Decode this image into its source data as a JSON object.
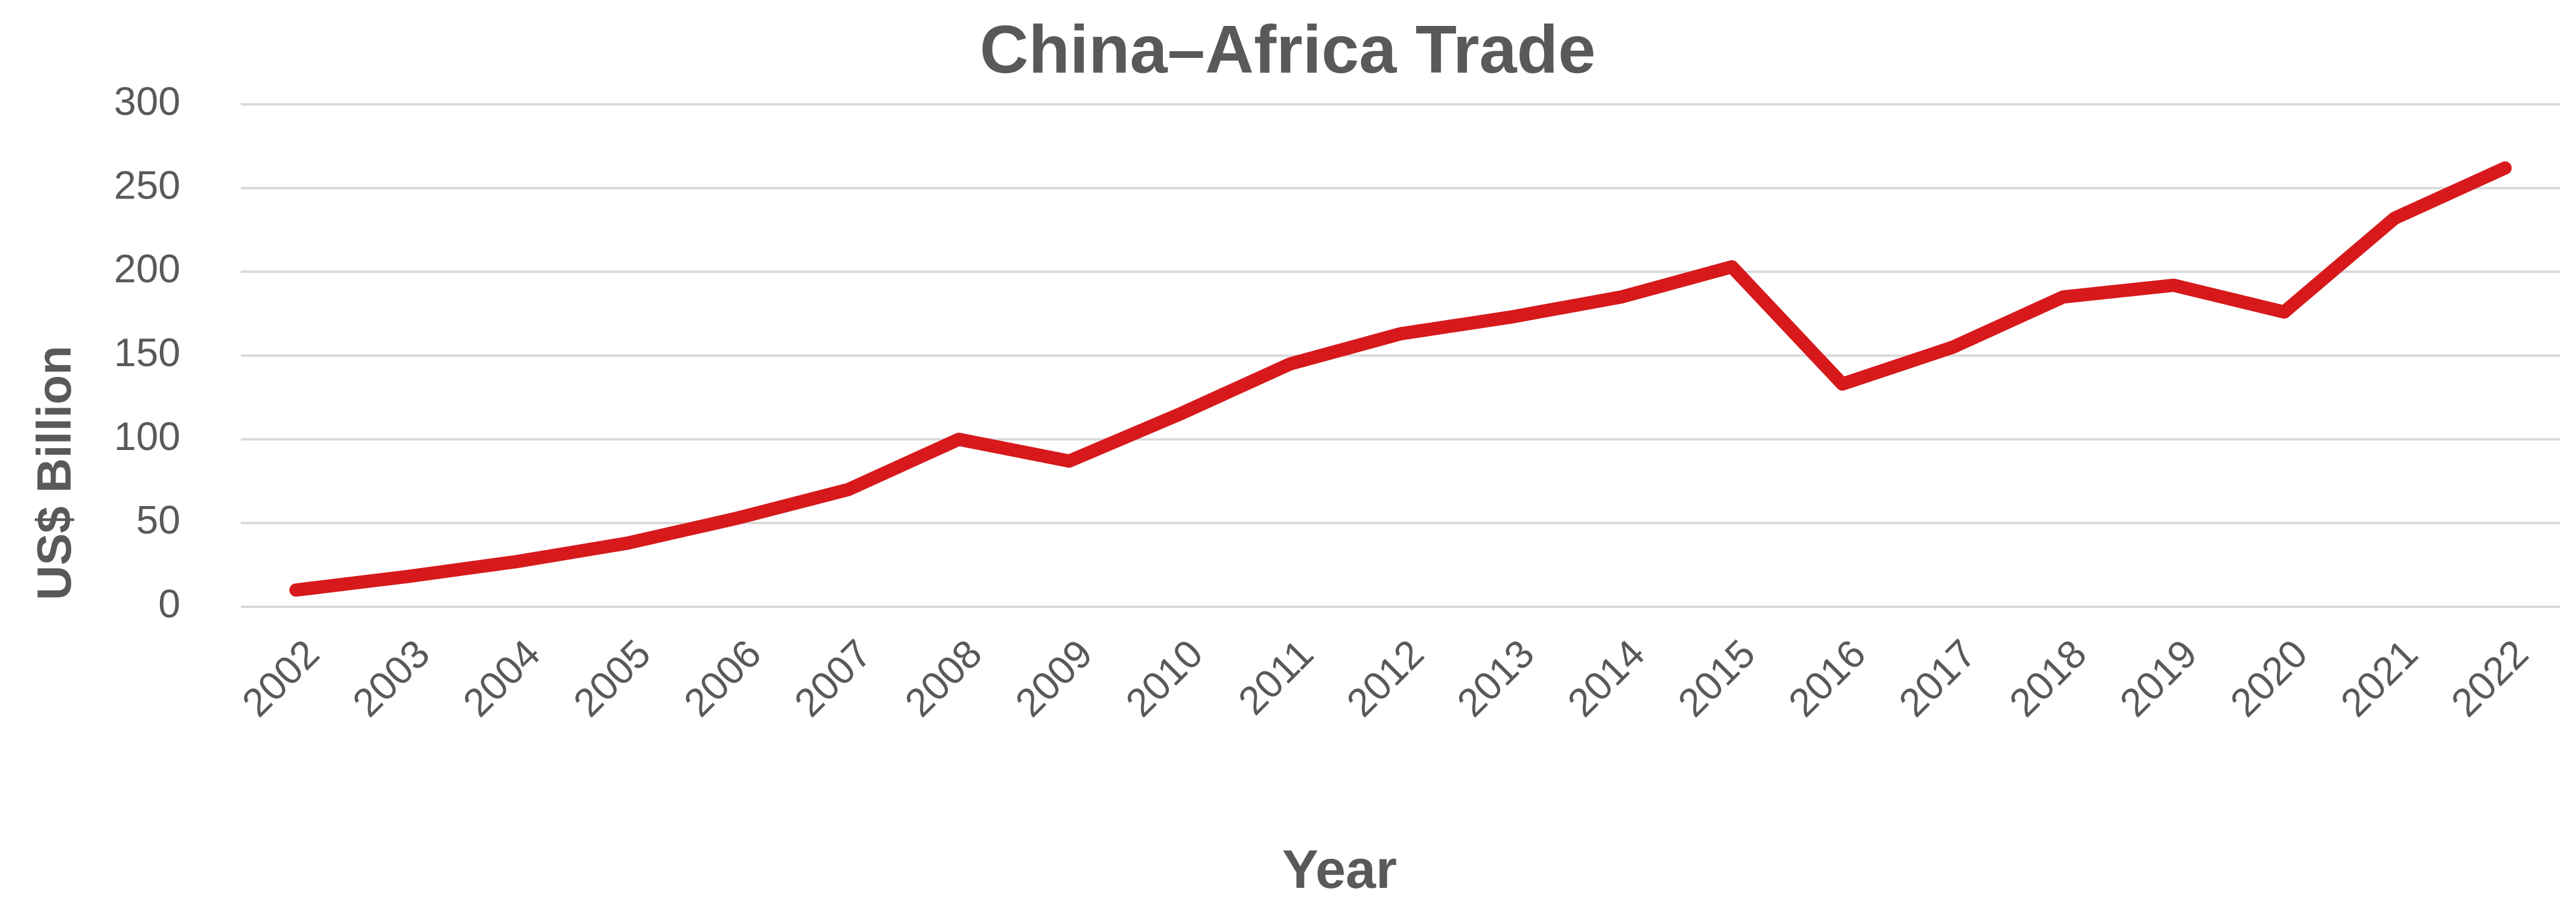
{
  "chart_data": {
    "type": "line",
    "title": "China–Africa Trade",
    "x_label": "Year",
    "y_label": "US$ Billion",
    "categories": [
      "2002",
      "2003",
      "2004",
      "2005",
      "2006",
      "2007",
      "2008",
      "2009",
      "2010",
      "2011",
      "2012",
      "2013",
      "2014",
      "2015",
      "2016",
      "2017",
      "2018",
      "2019",
      "2020",
      "2021",
      "2022"
    ],
    "values": [
      10,
      18,
      27,
      38,
      53,
      70,
      100,
      87,
      115,
      145,
      163,
      173,
      185,
      203,
      133,
      155,
      185,
      192,
      176,
      232,
      262
    ],
    "color": "#d7191c",
    "ylim": [
      0,
      300
    ],
    "yticks": [
      0,
      50,
      100,
      150,
      200,
      250,
      300
    ],
    "grid": true
  }
}
